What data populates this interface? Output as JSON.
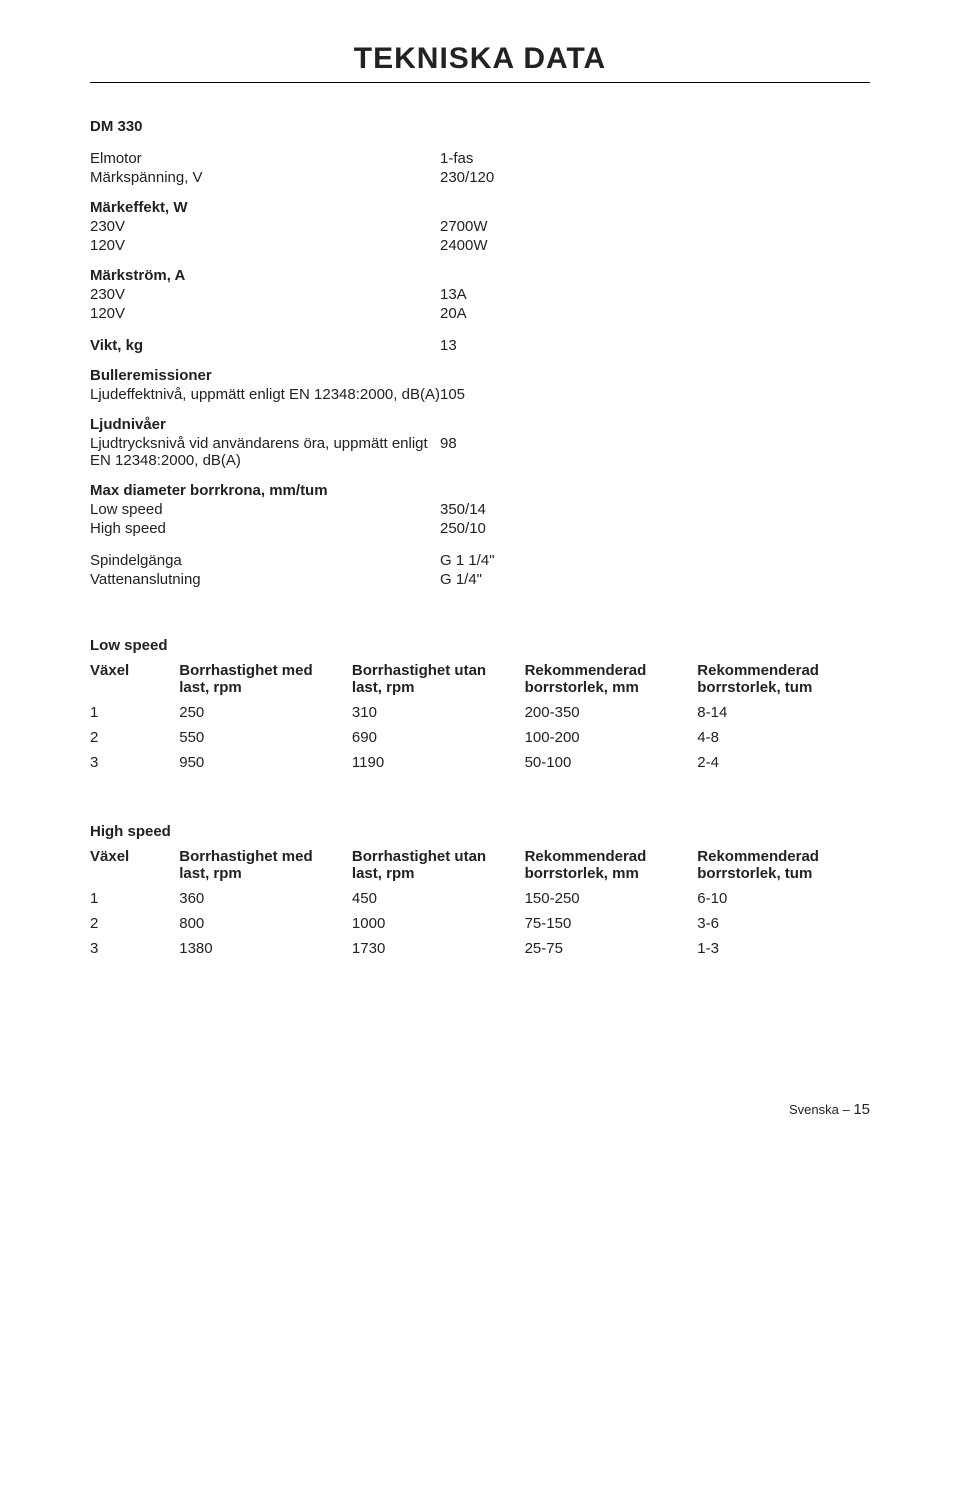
{
  "page_title": "TEKNISKA DATA",
  "model": "DM 330",
  "kv_sections": [
    {
      "rows": [
        {
          "label": "Elmotor",
          "value": "1-fas"
        },
        {
          "label": "Märkspänning, V",
          "value": "230/120"
        }
      ]
    },
    {
      "heading": "Märkeffekt, W",
      "rows": [
        {
          "label": "230V",
          "value": "2700W"
        },
        {
          "label": "120V",
          "value": "2400W"
        }
      ]
    },
    {
      "heading": "Märkström, A",
      "rows": [
        {
          "label": "230V",
          "value": "13A"
        },
        {
          "label": "120V",
          "value": "20A"
        }
      ]
    },
    {
      "rows": [
        {
          "label": "Vikt, kg",
          "value": "13",
          "bold_label": true
        }
      ]
    },
    {
      "heading": "Bulleremissioner",
      "rows": [
        {
          "label": "Ljudeffektnivå, uppmätt enligt EN 12348:2000, dB(A)",
          "value": "105"
        }
      ]
    },
    {
      "heading": "Ljudnivåer",
      "rows": [
        {
          "label": "Ljudtrycksnivå vid användarens öra, uppmätt enligt\nEN 12348:2000, dB(A)",
          "value": "98"
        }
      ]
    },
    {
      "heading": "Max diameter borrkrona, mm/tum",
      "rows": [
        {
          "label": "Low speed",
          "value": "350/14"
        },
        {
          "label": "High speed",
          "value": "250/10"
        }
      ]
    },
    {
      "rows": [
        {
          "label": "Spindelgänga",
          "value": "G 1 1/4\""
        },
        {
          "label": "Vattenanslutning",
          "value": "G 1/4\""
        }
      ]
    }
  ],
  "speed_tables": [
    {
      "title": "Low speed",
      "columns": [
        "Växel",
        "Borrhastighet med last, rpm",
        "Borrhastighet utan last, rpm",
        "Rekommenderad borrstorlek, mm",
        "Rekommenderad borrstorlek, tum"
      ],
      "rows": [
        [
          "1",
          "250",
          "310",
          "200-350",
          "8-14"
        ],
        [
          "2",
          "550",
          "690",
          "100-200",
          "4-8"
        ],
        [
          "3",
          "950",
          "1190",
          "50-100",
          "2-4"
        ]
      ]
    },
    {
      "title": "High speed",
      "columns": [
        "Växel",
        "Borrhastighet med last, rpm",
        "Borrhastighet utan last, rpm",
        "Rekommenderad borrstorlek, mm",
        "Rekommenderad borrstorlek, tum"
      ],
      "rows": [
        [
          "1",
          "360",
          "450",
          "150-250",
          "6-10"
        ],
        [
          "2",
          "800",
          "1000",
          "75-150",
          "3-6"
        ],
        [
          "3",
          "1380",
          "1730",
          "25-75",
          "1-3"
        ]
      ]
    }
  ],
  "footer": {
    "lang": "Svenska",
    "sep": " – ",
    "page": "15"
  },
  "colors": {
    "text": "#222222",
    "background": "#ffffff",
    "rule": "#000000"
  },
  "typography": {
    "title_fontsize_pt": 22,
    "body_fontsize_pt": 11,
    "font_family": "Helvetica"
  }
}
